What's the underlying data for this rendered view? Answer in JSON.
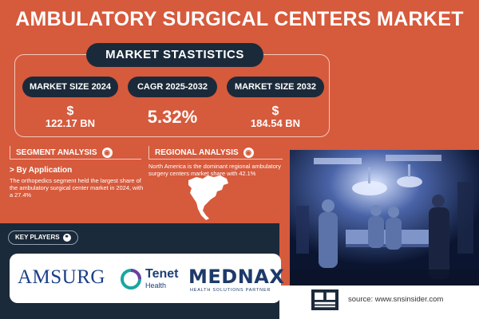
{
  "title": "AMBULATORY SURGICAL CENTERS MARKET",
  "market_stats": {
    "heading": "MARKET STASTISTICS",
    "items": [
      {
        "label": "MARKET SIZE 2024",
        "prefix": "$",
        "value": "122.17 BN"
      },
      {
        "label": "CAGR 2025-2032",
        "prefix": "",
        "value": "5.32%"
      },
      {
        "label": "MARKET SIZE 2032",
        "prefix": "$",
        "value": "184.54 BN"
      }
    ]
  },
  "segment_analysis": {
    "heading": "SEGMENT ANALYSIS",
    "subheading": "> By Application",
    "text": "The orthopedics segment held the largest share of the ambulatory surgical center market in 2024, with a 27.4%"
  },
  "regional_analysis": {
    "heading": "REGIONAL ANALYSIS",
    "text": "North America is the dominant regional ambulatory surgery centers market share with 42.1%"
  },
  "key_players": {
    "heading": "KEY PLAYERS",
    "logos": [
      {
        "name": "AMSURG"
      },
      {
        "name": "Tenet",
        "sub": "Health"
      },
      {
        "name": "MEDNAX",
        "sub": "HEALTH SOLUTIONS PARTNER"
      }
    ]
  },
  "source": "source: www.snsinsider.com",
  "colors": {
    "background": "#d65a3c",
    "navy": "#1b2a3a",
    "white": "#ffffff"
  },
  "icons": {
    "segment": "globe-icon",
    "regional": "globe-icon",
    "key_players": "link-icon"
  }
}
